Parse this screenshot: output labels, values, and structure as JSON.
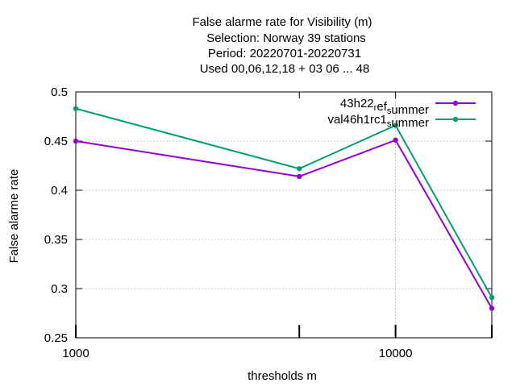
{
  "chart_data": {
    "type": "line",
    "title_lines": [
      "False alarme rate  for Visibility (m)",
      "Selection: Norway     39 stations",
      "Period: 20220701-20220731",
      "Used  00,06,12,18  + 03 06 ... 48"
    ],
    "xlabel": "thresholds m",
    "ylabel": "False alarme rate",
    "x_scale": "log",
    "xlim": [
      1000,
      20000
    ],
    "ylim": [
      0.25,
      0.5
    ],
    "x_ticks": [
      {
        "value": 1000,
        "label": "1000"
      },
      {
        "value": 10000,
        "label": "10000"
      }
    ],
    "x_minor_ticks": [
      5000,
      10000,
      20000
    ],
    "y_ticks": [
      {
        "value": 0.25,
        "label": "0.25"
      },
      {
        "value": 0.3,
        "label": "0.3"
      },
      {
        "value": 0.35,
        "label": "0.35"
      },
      {
        "value": 0.4,
        "label": "0.4"
      },
      {
        "value": 0.45,
        "label": "0.45"
      },
      {
        "value": 0.5,
        "label": "0.5"
      }
    ],
    "grid": true,
    "legend_position": "top-right",
    "series": [
      {
        "name_parts": [
          {
            "text": "43h22",
            "sub": false
          },
          {
            "text": "r",
            "sub": true
          },
          {
            "text": "ef",
            "sub": false
          },
          {
            "text": "s",
            "sub": true
          },
          {
            "text": "ummer",
            "sub": false
          }
        ],
        "color": "#9400d3",
        "x": [
          1000,
          5000,
          10000,
          20000
        ],
        "y": [
          0.45,
          0.414,
          0.451,
          0.28
        ]
      },
      {
        "name_parts": [
          {
            "text": "val46h1rc1",
            "sub": false
          },
          {
            "text": "s",
            "sub": true
          },
          {
            "text": "ummer",
            "sub": false
          }
        ],
        "color": "#009e73",
        "x": [
          1000,
          5000,
          10000,
          20000
        ],
        "y": [
          0.483,
          0.422,
          0.466,
          0.291
        ]
      }
    ]
  }
}
